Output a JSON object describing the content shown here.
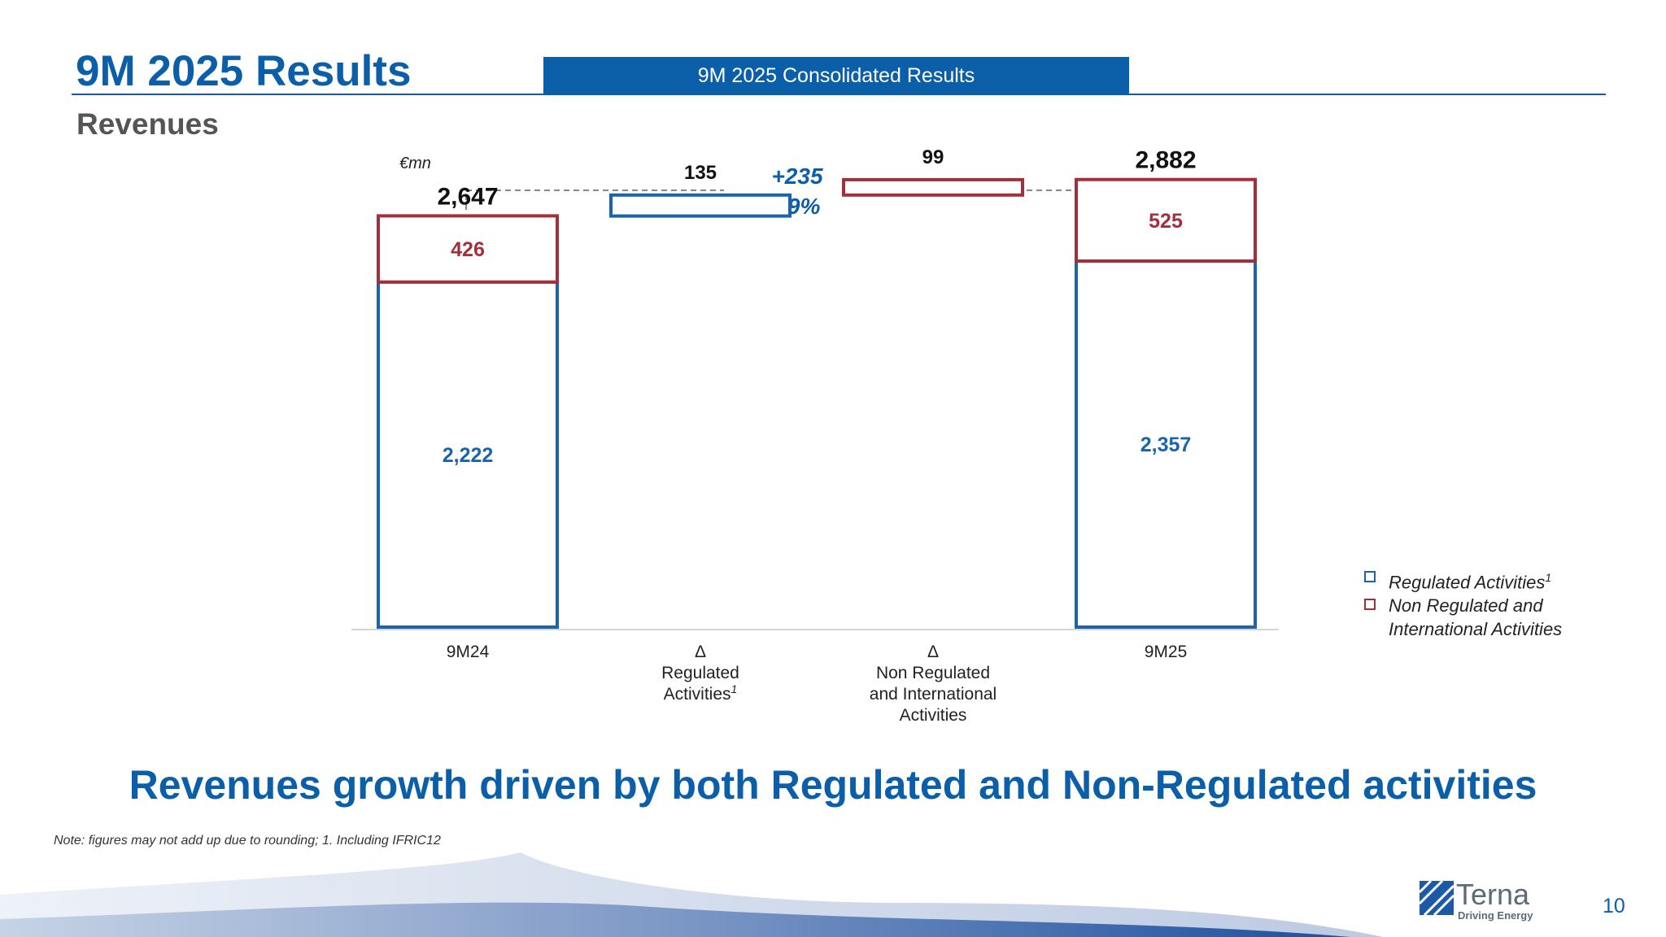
{
  "header": {
    "title": "9M 2025 Results",
    "band_label": "9M 2025 Consolidated Results",
    "subtitle": "Revenues"
  },
  "colors": {
    "brand_blue": "#0b5ea8",
    "regulated": "#1a63ad",
    "non_regulated": "#a42f3a"
  },
  "chart_data": {
    "type": "bar",
    "subtype": "waterfall",
    "unit": "€mn",
    "categories": [
      "9M24",
      "Δ Regulated Activities",
      "Δ Non Regulated and International Activities",
      "9M25"
    ],
    "category_labels": [
      {
        "lines": [
          "9M24"
        ]
      },
      {
        "lines": [
          "Δ",
          "Regulated",
          "Activities"
        ],
        "sup": "1"
      },
      {
        "lines": [
          "Δ",
          "Non Regulated",
          "and International",
          "Activities"
        ]
      },
      {
        "lines": [
          "9M25"
        ]
      }
    ],
    "series": [
      {
        "name": "Regulated Activities",
        "values": [
          2222,
          135,
          0,
          2357
        ]
      },
      {
        "name": "Non Regulated and International Activities",
        "values": [
          426,
          0,
          99,
          525
        ]
      }
    ],
    "totals": [
      2647,
      null,
      null,
      2882
    ],
    "segment_labels": {
      "regulated": [
        "2,222",
        "",
        "",
        "2,357"
      ],
      "non_regulated": [
        "426",
        "",
        "",
        "525"
      ]
    },
    "top_labels": [
      "2,647",
      "135",
      "99",
      "2,882"
    ],
    "variation": {
      "absolute": "+235",
      "percent": "+9%"
    },
    "ylim": [
      0,
      3200
    ],
    "grid": false,
    "legend_position": "right"
  },
  "legend": {
    "items": [
      {
        "label": "Regulated Activities",
        "sup": "1"
      },
      {
        "label": "Non Regulated and",
        "label2": "International Activities"
      }
    ]
  },
  "headline": "Revenues growth driven by both Regulated and Non-Regulated activities",
  "footnote": "Note: figures may not add up due to rounding;  1. Including IFRIC12",
  "branding": {
    "name": "Terna",
    "tagline": "Driving Energy"
  },
  "page_number": "10"
}
